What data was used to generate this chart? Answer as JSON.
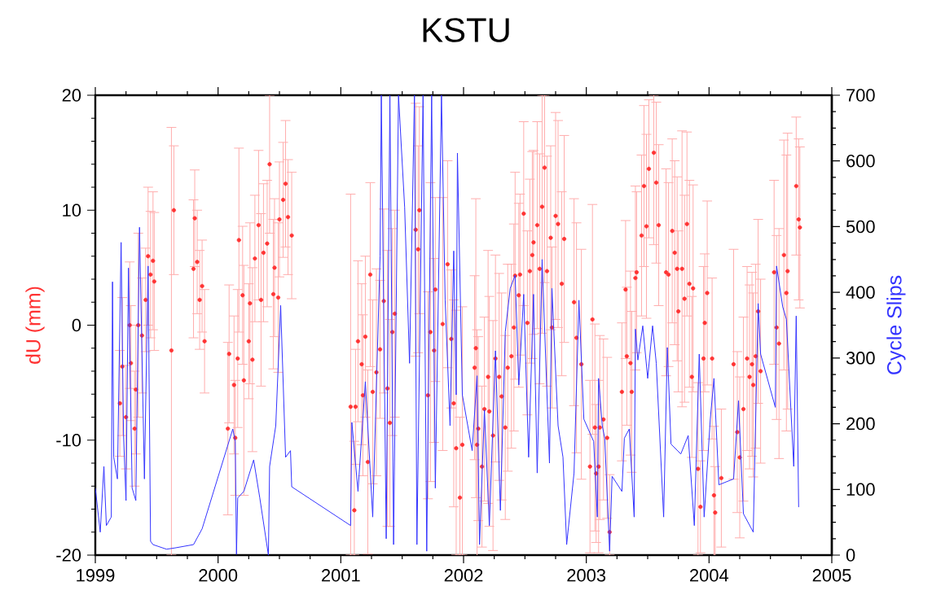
{
  "chart_data": {
    "type": "scatter",
    "title": "KSTU",
    "ylabel": "dU (mm)",
    "y2label": "Cycle Slips",
    "xlim": [
      1999,
      2005
    ],
    "xticks": [
      1999,
      2000,
      2001,
      2002,
      2003,
      2004,
      2005
    ],
    "ylim": [
      -20,
      20
    ],
    "yticks": [
      -20,
      -10,
      0,
      10,
      20
    ],
    "y2lim": [
      0,
      700
    ],
    "y2ticks": [
      0,
      100,
      200,
      300,
      400,
      500,
      600,
      700
    ],
    "series": [
      {
        "color": "#ff3333",
        "marker": "circle",
        "x": [
          1999.2,
          1999.22,
          1999.25,
          1999.28,
          1999.29,
          1999.32,
          1999.33,
          1999.35,
          1999.38,
          1999.41,
          1999.43,
          1999.45,
          1999.47,
          1999.48,
          1999.62,
          1999.64,
          1999.8,
          1999.81,
          1999.83,
          1999.85,
          1999.87,
          1999.89,
          2000.08,
          2000.09,
          2000.13,
          2000.14,
          2000.16,
          2000.17,
          2000.2,
          2000.21,
          2000.25,
          2000.26,
          2000.28,
          2000.3,
          2000.33,
          2000.35,
          2000.37,
          2000.4,
          2000.42,
          2000.45,
          2000.46,
          2000.49,
          2000.5,
          2000.53,
          2000.55,
          2000.57,
          2000.6,
          2001.08,
          2001.11,
          2001.12,
          2001.14,
          2001.17,
          2001.18,
          2001.2,
          2001.22,
          2001.24,
          2001.26,
          2001.29,
          2001.32,
          2001.35,
          2001.38,
          2001.4,
          2001.42,
          2001.44,
          2001.61,
          2001.63,
          2001.64,
          2001.71,
          2001.73,
          2001.76,
          2001.77,
          2001.83,
          2001.87,
          2001.9,
          2001.92,
          2001.94,
          2001.97,
          2001.99,
          2002.09,
          2002.1,
          2002.11,
          2002.12,
          2002.15,
          2002.17,
          2002.2,
          2002.21,
          2002.24,
          2002.26,
          2002.29,
          2002.31,
          2002.34,
          2002.36,
          2002.39,
          2002.41,
          2002.42,
          2002.45,
          2002.46,
          2002.49,
          2002.52,
          2002.54,
          2002.56,
          2002.57,
          2002.6,
          2002.62,
          2002.64,
          2002.66,
          2002.68,
          2002.71,
          2002.72,
          2002.75,
          2002.77,
          2002.8,
          2002.82,
          2002.9,
          2002.92,
          2002.96,
          2003.03,
          2003.05,
          2003.07,
          2003.08,
          2003.1,
          2003.11,
          2003.14,
          2003.17,
          2003.19,
          2003.29,
          2003.32,
          2003.33,
          2003.36,
          2003.37,
          2003.4,
          2003.41,
          2003.45,
          2003.47,
          2003.49,
          2003.51,
          2003.55,
          2003.57,
          2003.59,
          2003.65,
          2003.67,
          2003.7,
          2003.72,
          2003.74,
          2003.75,
          2003.78,
          2003.8,
          2003.82,
          2003.84,
          2003.86,
          2003.87,
          2003.91,
          2003.93,
          2003.955,
          2003.965,
          2003.985,
          2004.025,
          2004.04,
          2004.05,
          2004.1,
          2004.2,
          2004.23,
          2004.25,
          2004.28,
          2004.31,
          2004.33,
          2004.35,
          2004.36,
          2004.38,
          2004.4,
          2004.42,
          2004.53,
          2004.55,
          2004.57,
          2004.61,
          2004.63,
          2004.64,
          2004.71,
          2004.73,
          2004.74
        ],
        "values": [
          -6.8,
          -3.6,
          -8,
          0,
          -3.3,
          -9,
          -5.6,
          0,
          -0.9,
          2.2,
          6,
          4.4,
          5.6,
          3.8,
          -2.2,
          10,
          4.9,
          9.3,
          5.5,
          2.2,
          3.4,
          -1.4,
          -9,
          -2.5,
          -5.2,
          -9.8,
          -2.9,
          7.4,
          2.6,
          -4.8,
          -1.4,
          1.9,
          -3,
          5.8,
          8.7,
          2.2,
          6.3,
          7.1,
          14,
          2.7,
          5,
          2.4,
          9.2,
          10.9,
          12.3,
          9.4,
          7.8,
          -7.1,
          -16.1,
          -7.1,
          -1.4,
          -3.4,
          -6.1,
          -1,
          -11.9,
          4.4,
          -5.8,
          -4.1,
          -2.1,
          2.1,
          -5.5,
          -8.5,
          -0.6,
          1,
          8.3,
          6.6,
          10,
          -6.1,
          -0.6,
          -2.2,
          3.1,
          0.1,
          5.3,
          -1.2,
          -6.8,
          -10.7,
          -15,
          -10.4,
          -3.7,
          -2,
          -10.4,
          -9,
          -12.3,
          -7.3,
          -4.5,
          -7.5,
          -9.6,
          -2.9,
          -4.5,
          -6.2,
          -8.9,
          -3.7,
          -2.7,
          -0.2,
          4.3,
          2.6,
          4.4,
          9.7,
          0.2,
          4.7,
          6.1,
          7.2,
          8.7,
          4.9,
          10.3,
          13.7,
          4.7,
          7.6,
          -0.2,
          9.5,
          8.8,
          3.6,
          7.5,
          2,
          -1.1,
          -3.4,
          -12.3,
          0.5,
          -8.9,
          -12.9,
          -12.3,
          -8.9,
          -8.2,
          -9.8,
          -18,
          -5.8,
          3.1,
          -2.7,
          -3.3,
          -5.8,
          4.1,
          4.6,
          7.8,
          12.1,
          8.6,
          13.6,
          15,
          12.4,
          8.7,
          4.6,
          4.4,
          8.2,
          6.3,
          4.9,
          1.2,
          4.9,
          2.3,
          8.8,
          3.6,
          -4.5,
          3.2,
          -12.5,
          -15.8,
          -2.9,
          0.2,
          2.8,
          -2.9,
          -14.8,
          -16.3,
          -13.3,
          -3.4,
          -9.3,
          -11.5,
          -7.3,
          -2.9,
          -4.5,
          -3.4,
          -5.2,
          -2.7,
          1.2,
          -4,
          4.6,
          -0.2,
          -1.6,
          6.1,
          2.8,
          4.7,
          12.1,
          9.2,
          8.5
        ],
        "errors": [
          4.6,
          6,
          4.5,
          5.5,
          5,
          5,
          5.6,
          8,
          5,
          4.5,
          6,
          5.5,
          6,
          6,
          [
            -20,
            17.2
          ],
          5.6,
          6,
          4.2,
          4.5,
          4.3,
          4,
          4.5,
          7.5,
          6,
          6,
          5,
          6,
          8,
          6,
          10,
          5,
          7,
          8,
          5.5,
          6.5,
          7.5,
          6,
          5.5,
          6,
          6.5,
          6,
          6.5,
          5,
          5,
          5.5,
          5,
          5.5,
          [
            -20,
            11.4
          ],
          [
            -20,
            -10.1
          ],
          5,
          7,
          7,
          7,
          7,
          8,
          8,
          8,
          9,
          6,
          8,
          12,
          9,
          9,
          9,
          11,
          9,
          9,
          9,
          13,
          8,
          8,
          11,
          9,
          6,
          9,
          [
            -20,
            1.3
          ],
          [
            -20,
            -8
          ],
          [
            -20,
            1.6
          ],
          8,
          13,
          10,
          8,
          7,
          8,
          11,
          10,
          10,
          9,
          9,
          9,
          8,
          9,
          8,
          9,
          9,
          8,
          7,
          8,
          8,
          8,
          9,
          8,
          9,
          10,
          [
            -0.7,
            20
          ],
          [
            3.7,
            20
          ],
          10,
          8,
          7,
          9,
          9,
          8,
          9,
          9,
          10,
          10,
          7.5,
          10,
          9,
          6,
          7.5,
          8,
          7,
          7,
          [
            -20,
            -13
          ],
          6,
          6,
          6,
          8,
          7,
          8,
          7,
          7,
          7,
          8,
          6,
          [
            7,
            20
          ],
          7,
          7,
          9,
          8,
          8,
          8,
          8,
          7,
          12,
          9,
          8,
          9,
          7,
          9,
          7.5,
          4,
          8,
          6,
          8,
          7,
          6,
          4,
          6,
          10,
          7,
          7,
          8,
          8,
          8,
          8,
          8,
          8,
          8,
          8,
          8,
          8,
          10,
          10,
          12,
          12,
          6,
          7,
          7
        ]
      },
      {
        "type": "line",
        "axis": "y2",
        "color": "#3333ff",
        "marker": "none",
        "x": [
          1999.0,
          1999.04,
          1999.07,
          1999.09,
          1999.13,
          1999.14,
          1999.15,
          1999.18,
          1999.21,
          1999.23,
          1999.25,
          1999.27,
          1999.3,
          1999.33,
          1999.36,
          1999.4,
          1999.43,
          1999.45,
          1999.47,
          1999.58,
          1999.65,
          1999.8,
          1999.87,
          2000.12,
          2000.14,
          2000.15,
          2000.16,
          2000.21,
          2000.29,
          2000.34,
          2000.41,
          2000.42,
          2000.47,
          2000.51,
          2000.55,
          2000.59,
          2000.6,
          2001.08,
          2001.09,
          2001.14,
          2001.2,
          2001.26,
          2001.32,
          2001.33,
          2001.37,
          2001.4,
          2001.43,
          2001.47,
          2001.52,
          2001.56,
          2001.6,
          2001.62,
          2001.67,
          2001.7,
          2001.74,
          2001.77,
          2001.82,
          2001.85,
          2001.89,
          2001.92,
          2001.94,
          2001.95,
          2001.99,
          2002.07,
          2002.11,
          2002.13,
          2002.17,
          2002.21,
          2002.26,
          2002.3,
          2002.34,
          2002.38,
          2002.42,
          2002.45,
          2002.49,
          2002.53,
          2002.57,
          2002.6,
          2002.64,
          2002.7,
          2002.72,
          2002.77,
          2002.81,
          2002.84,
          2002.9,
          2002.94,
          2002.98,
          2003.06,
          2003.09,
          2003.1,
          2003.13,
          2003.15,
          2003.19,
          2003.21,
          2003.29,
          2003.31,
          2003.35,
          2003.39,
          2003.4,
          2003.42,
          2003.46,
          2003.5,
          2003.54,
          2003.57,
          2003.63,
          2003.66,
          2003.69,
          2003.77,
          2003.83,
          2003.88,
          2003.92,
          2003.96,
          2004.01,
          2004.04,
          2004.08,
          2004.2,
          2004.24,
          2004.28,
          2004.36,
          2004.4,
          2004.42,
          2004.54,
          2004.55,
          2004.6,
          2004.63,
          2004.69,
          2004.71,
          2004.73
        ],
        "values": [
          102,
          35,
          135,
          45,
          58,
          416,
          149,
          116,
          476,
          182,
          83,
          437,
          102,
          83,
          499,
          116,
          440,
          21,
          16,
          9,
          11,
          16,
          40,
          192,
          173,
          1,
          87,
          97,
          145,
          87,
          0,
          135,
          197,
          380,
          149,
          159,
          104,
          45,
          202,
          97,
          264,
          58,
          455,
          700,
          25,
          700,
          16,
          700,
          530,
          292,
          700,
          16,
          700,
          6,
          700,
          102,
          700,
          388,
          197,
          463,
          244,
          612,
          244,
          159,
          273,
          16,
          221,
          45,
          311,
          68,
          340,
          406,
          426,
          259,
          397,
          149,
          397,
          125,
          450,
          140,
          406,
          197,
          149,
          16,
          125,
          388,
          207,
          173,
          58,
          269,
          197,
          178,
          6,
          120,
          97,
          178,
          192,
          58,
          344,
          297,
          349,
          269,
          349,
          292,
          58,
          316,
          169,
          154,
          182,
          45,
          306,
          58,
          207,
          269,
          107,
          116,
          235,
          63,
          35,
          383,
          306,
          225,
          440,
          378,
          359,
          135,
          364,
          73
        ]
      }
    ]
  }
}
